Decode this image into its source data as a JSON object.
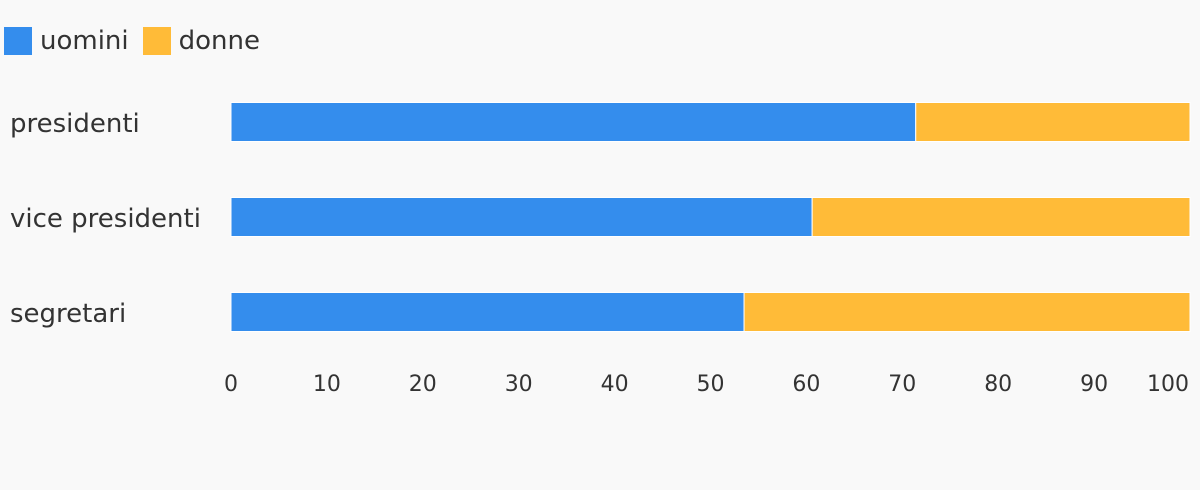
{
  "chart_data": {
    "type": "bar",
    "orientation": "horizontal",
    "stacked": true,
    "categories": [
      "presidenti",
      "vice presidenti",
      "segretari"
    ],
    "series": [
      {
        "name": "uomini",
        "color": "#348ded",
        "values": [
          71.4,
          60.6,
          53.5
        ]
      },
      {
        "name": "donne",
        "color": "#ffbb38",
        "values": [
          28.6,
          39.4,
          46.5
        ]
      }
    ],
    "xlim": [
      0,
      100
    ],
    "xticks": [
      0,
      10,
      20,
      30,
      40,
      50,
      60,
      70,
      80,
      90,
      100
    ],
    "title": "",
    "xlabel": "",
    "ylabel": "",
    "grid": false,
    "legend_position": "top-left"
  }
}
